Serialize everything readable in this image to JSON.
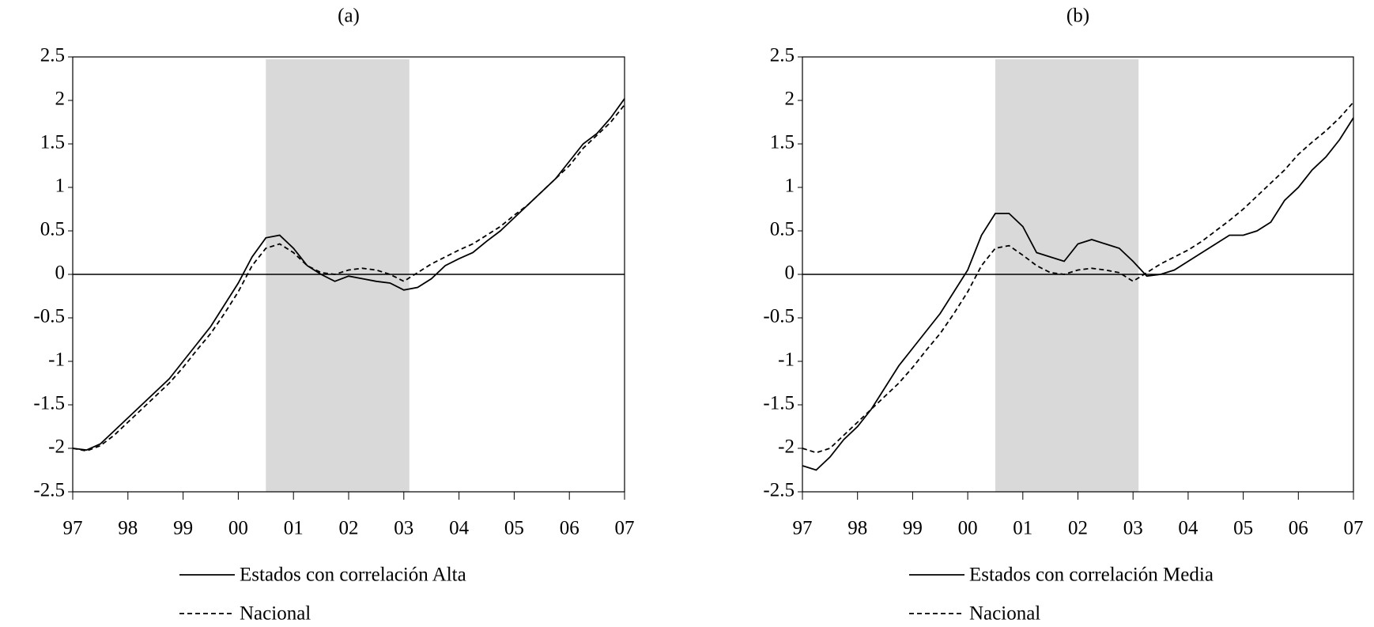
{
  "chart_data": [
    {
      "type": "line",
      "title": "(a)",
      "x": [
        1997,
        1997.25,
        1997.5,
        1997.75,
        1998,
        1998.25,
        1998.5,
        1998.75,
        1999,
        1999.25,
        1999.5,
        1999.75,
        2000,
        2000.25,
        2000.5,
        2000.75,
        2001,
        2001.25,
        2001.5,
        2001.75,
        2002,
        2002.25,
        2002.5,
        2002.75,
        2003,
        2003.25,
        2003.5,
        2003.75,
        2004,
        2004.25,
        2004.5,
        2004.75,
        2005,
        2005.25,
        2005.5,
        2005.75,
        2006,
        2006.25,
        2006.5,
        2006.75,
        2007
      ],
      "series": [
        {
          "name": "Estados con correlación Alta",
          "color": "#000000",
          "dash": false,
          "values": [
            -2.0,
            -2.02,
            -1.95,
            -1.8,
            -1.65,
            -1.5,
            -1.35,
            -1.2,
            -1.0,
            -0.8,
            -0.6,
            -0.35,
            -0.1,
            0.2,
            0.42,
            0.45,
            0.3,
            0.1,
            0.0,
            -0.08,
            -0.02,
            -0.05,
            -0.08,
            -0.1,
            -0.18,
            -0.15,
            -0.05,
            0.1,
            0.18,
            0.25,
            0.38,
            0.5,
            0.65,
            0.8,
            0.95,
            1.1,
            1.3,
            1.5,
            1.62,
            1.8,
            2.02
          ]
        },
        {
          "name": "Nacional",
          "color": "#000000",
          "dash": true,
          "values": [
            -2.0,
            -2.03,
            -1.97,
            -1.85,
            -1.7,
            -1.55,
            -1.4,
            -1.25,
            -1.07,
            -0.87,
            -0.68,
            -0.45,
            -0.2,
            0.1,
            0.3,
            0.35,
            0.25,
            0.1,
            0.02,
            0.0,
            0.05,
            0.07,
            0.05,
            0.0,
            -0.08,
            0.02,
            0.12,
            0.2,
            0.28,
            0.35,
            0.45,
            0.55,
            0.68,
            0.8,
            0.95,
            1.1,
            1.25,
            1.45,
            1.6,
            1.75,
            1.95
          ]
        }
      ],
      "shaded_span": [
        2000.5,
        2003.1
      ],
      "xlim": [
        1997,
        2007
      ],
      "xticks": [
        {
          "value": 1997,
          "label": "97"
        },
        {
          "value": 1998,
          "label": "98"
        },
        {
          "value": 1999,
          "label": "99"
        },
        {
          "value": 2000,
          "label": "00"
        },
        {
          "value": 2001,
          "label": "01"
        },
        {
          "value": 2002,
          "label": "02"
        },
        {
          "value": 2003,
          "label": "03"
        },
        {
          "value": 2004,
          "label": "04"
        },
        {
          "value": 2005,
          "label": "05"
        },
        {
          "value": 2006,
          "label": "06"
        },
        {
          "value": 2007,
          "label": "07"
        }
      ],
      "ylim": [
        -2.5,
        2.5
      ],
      "yticks": [
        -2.5,
        -2,
        -1.5,
        -1,
        -0.5,
        0,
        0.5,
        1,
        1.5,
        2,
        2.5
      ]
    },
    {
      "type": "line",
      "title": "(b)",
      "x": [
        1997,
        1997.25,
        1997.5,
        1997.75,
        1998,
        1998.25,
        1998.5,
        1998.75,
        1999,
        1999.25,
        1999.5,
        1999.75,
        2000,
        2000.25,
        2000.5,
        2000.75,
        2001,
        2001.25,
        2001.5,
        2001.75,
        2002,
        2002.25,
        2002.5,
        2002.75,
        2003,
        2003.25,
        2003.5,
        2003.75,
        2004,
        2004.25,
        2004.5,
        2004.75,
        2005,
        2005.25,
        2005.5,
        2005.75,
        2006,
        2006.25,
        2006.5,
        2006.75,
        2007
      ],
      "series": [
        {
          "name": "Estados con correlación Media",
          "color": "#000000",
          "dash": false,
          "values": [
            -2.2,
            -2.25,
            -2.1,
            -1.9,
            -1.75,
            -1.55,
            -1.3,
            -1.05,
            -0.85,
            -0.65,
            -0.45,
            -0.2,
            0.05,
            0.45,
            0.7,
            0.7,
            0.55,
            0.25,
            0.2,
            0.15,
            0.35,
            0.4,
            0.35,
            0.3,
            0.15,
            -0.02,
            0.0,
            0.05,
            0.15,
            0.25,
            0.35,
            0.45,
            0.45,
            0.5,
            0.6,
            0.85,
            1.0,
            1.2,
            1.35,
            1.55,
            1.8
          ]
        },
        {
          "name": "Nacional",
          "color": "#000000",
          "dash": true,
          "values": [
            -2.0,
            -2.05,
            -2.0,
            -1.85,
            -1.7,
            -1.55,
            -1.4,
            -1.25,
            -1.07,
            -0.87,
            -0.68,
            -0.45,
            -0.2,
            0.1,
            0.3,
            0.33,
            0.22,
            0.1,
            0.02,
            0.0,
            0.05,
            0.07,
            0.05,
            0.02,
            -0.08,
            0.02,
            0.12,
            0.2,
            0.28,
            0.38,
            0.5,
            0.62,
            0.75,
            0.9,
            1.05,
            1.2,
            1.38,
            1.52,
            1.65,
            1.8,
            1.98
          ]
        }
      ],
      "shaded_span": [
        2000.5,
        2003.1
      ],
      "xlim": [
        1997,
        2007
      ],
      "xticks": [
        {
          "value": 1997,
          "label": "97"
        },
        {
          "value": 1998,
          "label": "98"
        },
        {
          "value": 1999,
          "label": "99"
        },
        {
          "value": 2000,
          "label": "00"
        },
        {
          "value": 2001,
          "label": "01"
        },
        {
          "value": 2002,
          "label": "02"
        },
        {
          "value": 2003,
          "label": "03"
        },
        {
          "value": 2004,
          "label": "04"
        },
        {
          "value": 2005,
          "label": "05"
        },
        {
          "value": 2006,
          "label": "06"
        },
        {
          "value": 2007,
          "label": "07"
        }
      ],
      "ylim": [
        -2.5,
        2.5
      ],
      "yticks": [
        -2.5,
        -2,
        -1.5,
        -1,
        -0.5,
        0,
        0.5,
        1,
        1.5,
        2,
        2.5
      ]
    }
  ]
}
